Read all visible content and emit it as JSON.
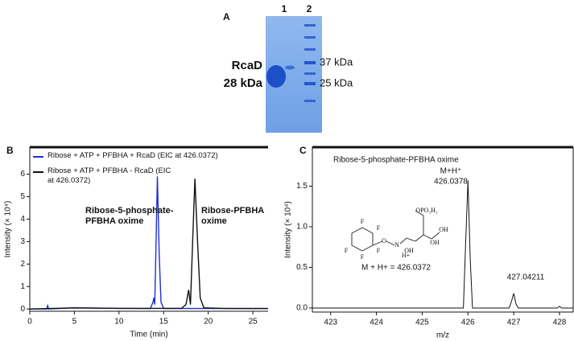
{
  "gel": {
    "panel": "A",
    "lanes": [
      "1",
      "2"
    ],
    "protein": "RcaD",
    "protein_size": "28 kDa",
    "markers": [
      "37 kDa",
      "25 kDa"
    ]
  },
  "chart_data": [
    {
      "type": "line",
      "panel": "B",
      "x_label": "Time (min)",
      "y_label": "Intensity (× 10⁴)",
      "xlim": [
        0,
        26.7
      ],
      "ylim": [
        -0.1,
        7.2
      ],
      "xticks": [
        0,
        5,
        10,
        15,
        20,
        25
      ],
      "yticks": [
        0,
        1,
        2,
        3,
        4,
        5,
        6
      ],
      "series": [
        {
          "name": "Ribose + ATP + PFBHA + RcaD (EIC at 426.0372)",
          "color": "#1f2fd0",
          "x": [
            0,
            1.9,
            2,
            2.1,
            5,
            10,
            13.5,
            13.8,
            13.9,
            14.0,
            14.1,
            14.3,
            14.5,
            14.7,
            15,
            20,
            26.7
          ],
          "values": [
            0,
            0,
            0.15,
            0,
            0.05,
            0.03,
            0.02,
            0.3,
            0.5,
            0.2,
            2,
            5.9,
            2.5,
            0.3,
            0.02,
            0.02,
            0.02
          ]
        },
        {
          "name": "Ribose + ATP + PFBHA - RcaD (EIC at 426.0372)",
          "color": "#111111",
          "x": [
            0,
            5,
            10,
            17,
            17.5,
            17.8,
            18.0,
            18.2,
            18.5,
            18.8,
            19.1,
            19.5,
            22,
            26.7
          ],
          "values": [
            0,
            0.05,
            0.03,
            0.03,
            0.2,
            0.85,
            0.2,
            2.5,
            5.8,
            3,
            0.5,
            0.05,
            0.02,
            0.02
          ]
        }
      ],
      "annotations": [
        [
          "Ribose-5-phosphate-",
          "PFBHA oxime"
        ],
        [
          "Ribose-PFBHA",
          "oxime"
        ]
      ]
    },
    {
      "type": "line",
      "panel": "C",
      "title": "Ribose-5-phosphate-PFBHA oxime",
      "x_label": "m/z",
      "y_label": "Intensity (× 10⁴)",
      "xlim": [
        422.6,
        428.3
      ],
      "ylim": [
        -0.05,
        1.98
      ],
      "xticks": [
        423,
        424,
        425,
        426,
        427,
        428
      ],
      "yticks": [
        {
          "value": 0,
          "label": "0.0"
        },
        {
          "value": 0.5,
          "label": "0.5"
        },
        {
          "value": 1,
          "label": "1.0"
        },
        {
          "value": 1.5,
          "label": "1.5"
        }
      ],
      "series": [
        {
          "color": "#111111",
          "x": [
            422.6,
            425.9,
            425.95,
            426.0,
            426.05,
            426.1,
            426.9,
            426.95,
            427.0,
            427.05,
            427.1,
            427.95,
            428.0,
            428.05,
            428.3
          ],
          "values": [
            0,
            0,
            0.8,
            1.57,
            0.6,
            0,
            0,
            0.08,
            0.18,
            0.05,
            0,
            0,
            0.02,
            0,
            0
          ]
        }
      ],
      "annotations": [
        [
          "M+H⁺",
          "426.0378"
        ],
        [
          "427.04211"
        ],
        [
          "M + H+ = 426.0372"
        ]
      ],
      "structure_labels": [
        "F",
        "F",
        "F",
        "F",
        "F",
        "O",
        "N",
        "H+",
        "OH",
        "OH",
        "OH",
        "OPO₃H₂"
      ]
    }
  ]
}
